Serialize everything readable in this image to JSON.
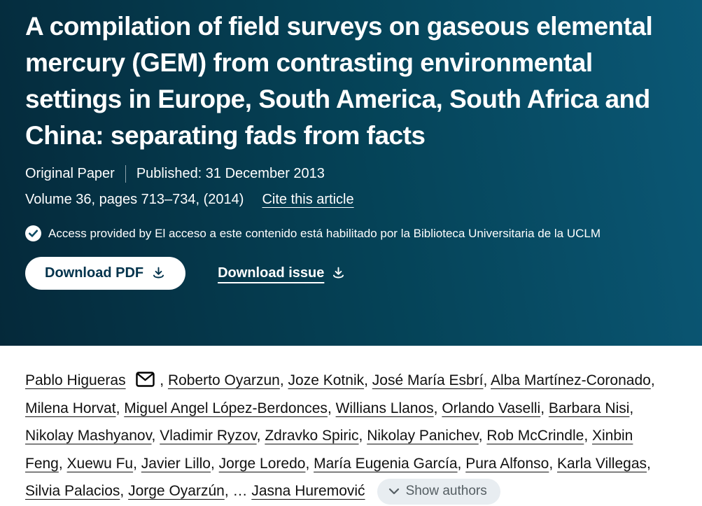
{
  "header": {
    "title": "A compilation of field surveys on gaseous elemental mercury (GEM) from contrasting environmental settings in Europe, South America, South Africa and China: separating fads from facts",
    "article_type": "Original Paper",
    "published": "Published: 31 December 2013",
    "volume_info": "Volume 36, pages 713–734, (2014)",
    "cite_link_label": "Cite this article",
    "access_note": "Access provided by El acceso a este contenido está habilitado por la Biblioteca Universitaria de la UCLM",
    "download_pdf_label": "Download PDF",
    "download_issue_label": "Download issue"
  },
  "authors": {
    "list": [
      "Pablo Higueras",
      "Roberto Oyarzun",
      "Joze Kotnik",
      "José María Esbrí",
      "Alba Martínez-Coronado",
      "Milena Horvat",
      "Miguel Angel López-Berdonces",
      "Willians Llanos",
      "Orlando Vaselli",
      "Barbara Nisi",
      "Nikolay Mashyanov",
      "Vladimir Ryzov",
      "Zdravko Spiric",
      "Nikolay Panichev",
      "Rob McCrindle",
      "Xinbin Feng",
      "Xuewu Fu",
      "Javier Lillo",
      "Jorge Loredo",
      "María Eugenia García",
      "Pura Alfonso",
      "Karla Villegas",
      "Silvia Palacios",
      "Jorge Oyarzún"
    ],
    "ellipsis": "…",
    "last": "Jasna Huremović",
    "show_authors_label": "Show authors"
  },
  "icons": {
    "access_check": "check-circle-icon",
    "download": "download-icon",
    "envelope": "envelope-icon",
    "chevron_down": "chevron-down-icon"
  },
  "colors": {
    "hero_grad_start": "#05293a",
    "hero_grad_mid": "#054459",
    "hero_grad_end": "#0b5876",
    "button_text": "#01324b",
    "author_text": "#111111",
    "show_authors_bg": "#e8edf1",
    "show_authors_text": "#555e63"
  }
}
